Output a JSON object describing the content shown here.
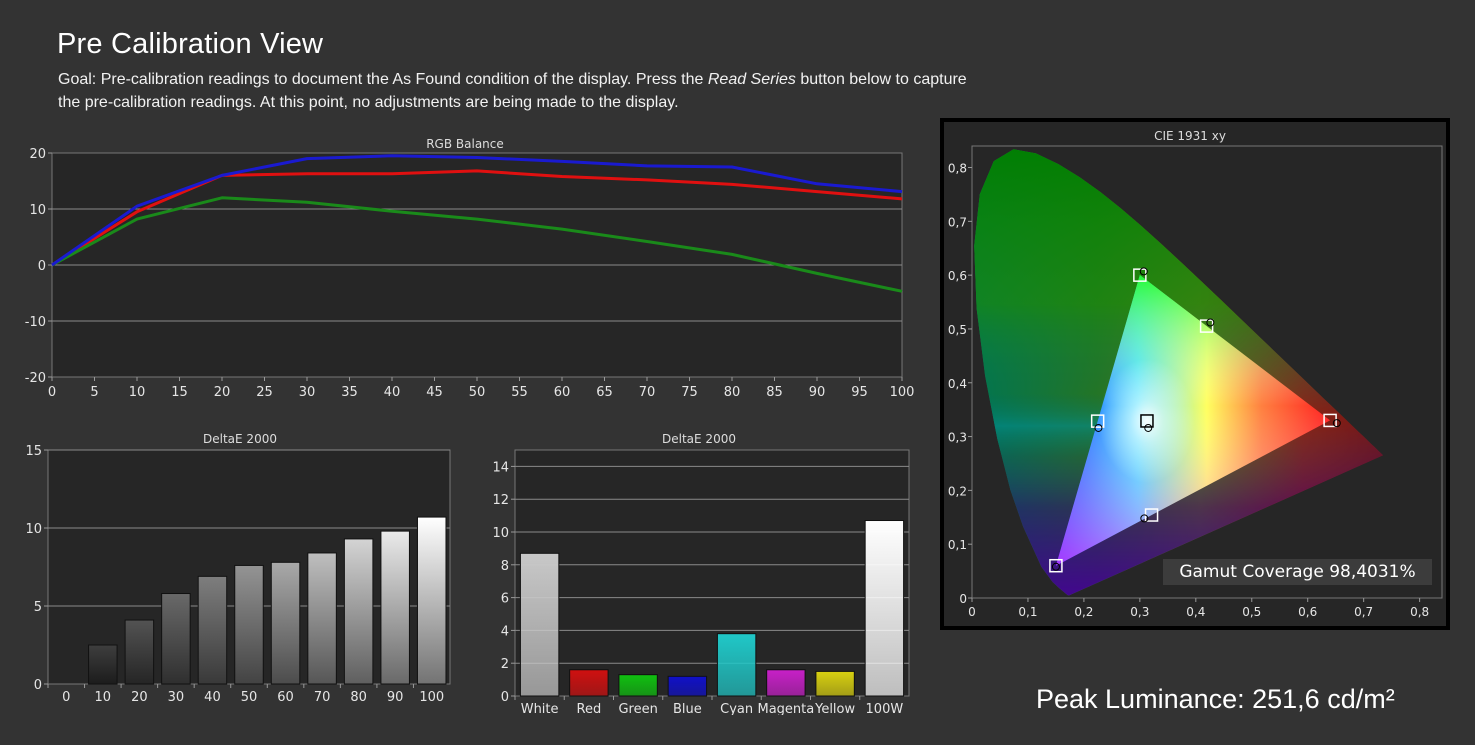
{
  "header": {
    "title": "Pre Calibration View",
    "goal_prefix": "Goal: Pre-calibration readings to document the As Found condition of the display. Press the ",
    "goal_italic": "Read Series",
    "goal_suffix": " button below to capture the pre-calibration readings. At this point, no adjustments are being made to the display."
  },
  "peak_luminance": "Peak Luminance: 251,6 cd/m²",
  "gamut_coverage": "Gamut Coverage 98,4031%",
  "colors": {
    "background": "#333333",
    "plot_bg": "#262626",
    "red": "#e01010",
    "green": "#1a8a1a",
    "blue": "#1a1ad0"
  },
  "chart_data": [
    {
      "type": "line",
      "title": "RGB Balance",
      "x": [
        0,
        10,
        20,
        30,
        40,
        50,
        60,
        70,
        80,
        90,
        100
      ],
      "xticks": [
        "0",
        "5",
        "10",
        "15",
        "20",
        "25",
        "30",
        "35",
        "40",
        "45",
        "50",
        "55",
        "60",
        "65",
        "70",
        "75",
        "80",
        "85",
        "90",
        "95",
        "100"
      ],
      "yticks": [
        "20",
        "10",
        "0",
        "-10",
        "-20"
      ],
      "ylim": [
        -20,
        20
      ],
      "xlim": [
        0,
        100
      ],
      "series": [
        {
          "color": "#e01010",
          "values": [
            0,
            9.5,
            16,
            16.3,
            16.3,
            16.8,
            15.8,
            15.2,
            14.4,
            13.1,
            11.8
          ]
        },
        {
          "color": "#1a8a1a",
          "values": [
            0,
            8.2,
            12,
            11.2,
            9.6,
            8.2,
            6.4,
            4.2,
            1.9,
            -1.5,
            -4.7
          ]
        },
        {
          "color": "#1a1ad0",
          "values": [
            0,
            10.5,
            16,
            19,
            19.5,
            19.2,
            18.5,
            17.7,
            17.5,
            14.5,
            13.1
          ]
        }
      ],
      "grid": true
    },
    {
      "type": "bar",
      "title": "DeltaE 2000",
      "categories": [
        "0",
        "10",
        "20",
        "30",
        "40",
        "50",
        "60",
        "70",
        "80",
        "90",
        "100"
      ],
      "values": [
        0,
        2.5,
        4.1,
        5.8,
        6.9,
        7.6,
        7.8,
        8.4,
        9.3,
        9.8,
        10.7
      ],
      "yticks": [
        "15",
        "10",
        "5",
        "0"
      ],
      "ylim": [
        0,
        15
      ],
      "grid": true
    },
    {
      "type": "bar",
      "title": "DeltaE 2000",
      "categories": [
        "White",
        "Red",
        "Green",
        "Blue",
        "Cyan",
        "Magenta",
        "Yellow",
        "100W"
      ],
      "values": [
        8.7,
        1.6,
        1.3,
        1.2,
        3.8,
        1.6,
        1.5,
        10.7
      ],
      "colors": [
        "#c8c8c8",
        "#d01010",
        "#10c010",
        "#1010c8",
        "#20c8c8",
        "#c820c8",
        "#d8d010",
        "#ffffff"
      ],
      "yticks": [
        "14",
        "12",
        "10",
        "8",
        "6",
        "4",
        "2",
        "0"
      ],
      "ylim": [
        0,
        15
      ],
      "grid": true
    },
    {
      "type": "scatter",
      "title": "CIE 1931 xy",
      "xticks": [
        "0",
        "0,1",
        "0,2",
        "0,3",
        "0,4",
        "0,5",
        "0,6",
        "0,7",
        "0,8"
      ],
      "yticks": [
        "0,8",
        "0,7",
        "0,6",
        "0,5",
        "0,4",
        "0,3",
        "0,2",
        "0,1",
        "0"
      ],
      "xlim": [
        0,
        0.84
      ],
      "ylim": [
        0,
        0.84
      ],
      "targets": [
        [
          0.64,
          0.33
        ],
        [
          0.3,
          0.6
        ],
        [
          0.15,
          0.06
        ],
        [
          0.3127,
          0.329
        ],
        [
          0.2246,
          0.3287
        ],
        [
          0.3209,
          0.1542
        ],
        [
          0.4193,
          0.5053
        ]
      ],
      "measured": [
        [
          0.652,
          0.325
        ],
        [
          0.307,
          0.607
        ],
        [
          0.15,
          0.058
        ],
        [
          0.315,
          0.316
        ],
        [
          0.226,
          0.316
        ],
        [
          0.308,
          0.148
        ],
        [
          0.426,
          0.512
        ]
      ]
    }
  ]
}
